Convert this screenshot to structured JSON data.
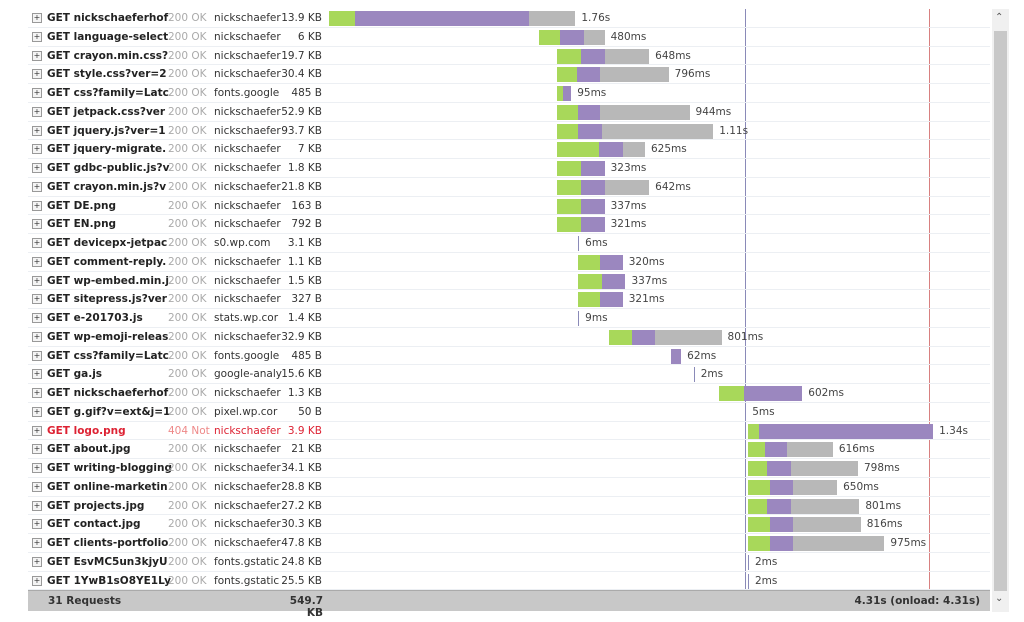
{
  "timeline": {
    "range_s": [
      0,
      4.75
    ],
    "dom_content_loaded_s": 2.99,
    "onload_s": 4.31,
    "colors": {
      "connecting": "#a8d85a",
      "waiting": "#9b87bf",
      "receiving": "#b8b8b8",
      "dom_line": "#8a8ab8",
      "onload_line": "#d88080"
    }
  },
  "requests": [
    {
      "name": "GET nickschaeferhof",
      "status": "200 OK",
      "domain": "nickschaefer",
      "size": "13.9 KB",
      "time": "1.76s",
      "start": 0,
      "g": 0.19,
      "p": 1.25,
      "r": 0.33
    },
    {
      "name": "GET language-select",
      "status": "200 OK",
      "domain": "nickschaefer",
      "size": "6 KB",
      "time": "480ms",
      "start": 1.51,
      "g": 0.15,
      "p": 0.17,
      "r": 0.15
    },
    {
      "name": "GET crayon.min.css?",
      "status": "200 OK",
      "domain": "nickschaefer",
      "size": "19.7 KB",
      "time": "648ms",
      "start": 1.64,
      "g": 0.17,
      "p": 0.17,
      "r": 0.32
    },
    {
      "name": "GET style.css?ver=2",
      "status": "200 OK",
      "domain": "nickschaefer",
      "size": "30.4 KB",
      "time": "796ms",
      "start": 1.64,
      "g": 0.14,
      "p": 0.17,
      "r": 0.49
    },
    {
      "name": "GET css?family=Latc",
      "status": "200 OK",
      "domain": "fonts.google",
      "size": "485 B",
      "time": "95ms",
      "start": 1.64,
      "g": 0.04,
      "p": 0.06,
      "r": 0
    },
    {
      "name": "GET jetpack.css?ver",
      "status": "200 OK",
      "domain": "nickschaefer",
      "size": "52.9 KB",
      "time": "944ms",
      "start": 1.64,
      "g": 0.15,
      "p": 0.16,
      "r": 0.64
    },
    {
      "name": "GET jquery.js?ver=1",
      "status": "200 OK",
      "domain": "nickschaefer",
      "size": "93.7 KB",
      "time": "1.11s",
      "start": 1.64,
      "g": 0.15,
      "p": 0.17,
      "r": 0.8
    },
    {
      "name": "GET jquery-migrate.",
      "status": "200 OK",
      "domain": "nickschaefer",
      "size": "7 KB",
      "time": "625ms",
      "start": 1.64,
      "g": 0.3,
      "p": 0.17,
      "r": 0.16
    },
    {
      "name": "GET gdbc-public.js?v",
      "status": "200 OK",
      "domain": "nickschaefer",
      "size": "1.8 KB",
      "time": "323ms",
      "start": 1.64,
      "g": 0.17,
      "p": 0.17,
      "r": 0
    },
    {
      "name": "GET crayon.min.js?v",
      "status": "200 OK",
      "domain": "nickschaefer",
      "size": "21.8 KB",
      "time": "642ms",
      "start": 1.64,
      "g": 0.17,
      "p": 0.17,
      "r": 0.32
    },
    {
      "name": "GET DE.png",
      "status": "200 OK",
      "domain": "nickschaefer",
      "size": "163 B",
      "time": "337ms",
      "start": 1.64,
      "g": 0.17,
      "p": 0.17,
      "r": 0
    },
    {
      "name": "GET EN.png",
      "status": "200 OK",
      "domain": "nickschaefer",
      "size": "792 B",
      "time": "321ms",
      "start": 1.64,
      "g": 0.17,
      "p": 0.17,
      "r": 0
    },
    {
      "name": "GET devicepx-jetpac",
      "status": "200 OK",
      "domain": "s0.wp.com",
      "size": "3.1 KB",
      "time": "6ms",
      "start": 1.79,
      "g": 0,
      "p": 0,
      "r": 0
    },
    {
      "name": "GET comment-reply.",
      "status": "200 OK",
      "domain": "nickschaefer",
      "size": "1.1 KB",
      "time": "320ms",
      "start": 1.79,
      "g": 0.16,
      "p": 0.16,
      "r": 0
    },
    {
      "name": "GET wp-embed.min.j",
      "status": "200 OK",
      "domain": "nickschaefer",
      "size": "1.5 KB",
      "time": "337ms",
      "start": 1.79,
      "g": 0.17,
      "p": 0.17,
      "r": 0
    },
    {
      "name": "GET sitepress.js?ver",
      "status": "200 OK",
      "domain": "nickschaefer",
      "size": "327 B",
      "time": "321ms",
      "start": 1.79,
      "g": 0.16,
      "p": 0.16,
      "r": 0
    },
    {
      "name": "GET e-201703.js",
      "status": "200 OK",
      "domain": "stats.wp.cor",
      "size": "1.4 KB",
      "time": "9ms",
      "start": 1.79,
      "g": 0,
      "p": 0,
      "r": 0
    },
    {
      "name": "GET wp-emoji-releas",
      "status": "200 OK",
      "domain": "nickschaefer",
      "size": "32.9 KB",
      "time": "801ms",
      "start": 2.01,
      "g": 0.17,
      "p": 0.16,
      "r": 0.48
    },
    {
      "name": "GET css?family=Latc",
      "status": "200 OK",
      "domain": "fonts.google",
      "size": "485 B",
      "time": "62ms",
      "start": 2.46,
      "g": 0,
      "p": 0.07,
      "r": 0
    },
    {
      "name": "GET ga.js",
      "status": "200 OK",
      "domain": "google-analy",
      "size": "15.6 KB",
      "time": "2ms",
      "start": 2.62,
      "g": 0,
      "p": 0,
      "r": 0
    },
    {
      "name": "GET nickschaeferhof",
      "status": "200 OK",
      "domain": "nickschaefer",
      "size": "1.3 KB",
      "time": "602ms",
      "start": 2.8,
      "g": 0.18,
      "p": 0.42,
      "r": 0
    },
    {
      "name": "GET g.gif?v=ext&j=1",
      "status": "200 OK",
      "domain": "pixel.wp.cor",
      "size": "50 B",
      "time": "5ms",
      "start": 2.99,
      "g": 0,
      "p": 0,
      "r": 0
    },
    {
      "name": "GET logo.png",
      "status": "404 Not",
      "domain": "nickschaefer",
      "size": "3.9 KB",
      "time": "1.34s",
      "start": 3.01,
      "g": 0.08,
      "p": 1.25,
      "r": 0,
      "error": true
    },
    {
      "name": "GET about.jpg",
      "status": "200 OK",
      "domain": "nickschaefer",
      "size": "21 KB",
      "time": "616ms",
      "start": 3.01,
      "g": 0.12,
      "p": 0.16,
      "r": 0.33
    },
    {
      "name": "GET writing-blogging",
      "status": "200 OK",
      "domain": "nickschaefer",
      "size": "34.1 KB",
      "time": "798ms",
      "start": 3.01,
      "g": 0.14,
      "p": 0.17,
      "r": 0.48
    },
    {
      "name": "GET online-marketin",
      "status": "200 OK",
      "domain": "nickschaefer",
      "size": "28.8 KB",
      "time": "650ms",
      "start": 3.01,
      "g": 0.16,
      "p": 0.16,
      "r": 0.32
    },
    {
      "name": "GET projects.jpg",
      "status": "200 OK",
      "domain": "nickschaefer",
      "size": "27.2 KB",
      "time": "801ms",
      "start": 3.01,
      "g": 0.14,
      "p": 0.17,
      "r": 0.49
    },
    {
      "name": "GET contact.jpg",
      "status": "200 OK",
      "domain": "nickschaefer",
      "size": "30.3 KB",
      "time": "816ms",
      "start": 3.01,
      "g": 0.16,
      "p": 0.16,
      "r": 0.49
    },
    {
      "name": "GET clients-portfolio",
      "status": "200 OK",
      "domain": "nickschaefer",
      "size": "47.8 KB",
      "time": "975ms",
      "start": 3.01,
      "g": 0.16,
      "p": 0.16,
      "r": 0.66
    },
    {
      "name": "GET EsvMC5un3kjyU",
      "status": "200 OK",
      "domain": "fonts.gstatic",
      "size": "24.8 KB",
      "time": "2ms",
      "start": 3.01,
      "g": 0,
      "p": 0,
      "r": 0
    },
    {
      "name": "GET 1YwB1sO8YE1Ly",
      "status": "200 OK",
      "domain": "fonts.gstatic",
      "size": "25.5 KB",
      "time": "2ms",
      "start": 3.01,
      "g": 0,
      "p": 0,
      "r": 0
    }
  ],
  "summary": {
    "requests": "31 Requests",
    "size": "549.7 KB",
    "time": "4.31s (onload: 4.31s)"
  },
  "icons": {
    "expand": "plus-box-icon",
    "scroll_up": "chevron-up-icon",
    "scroll_down": "chevron-down-icon"
  },
  "glyphs": {
    "expand": "+",
    "up": "⌃",
    "down": "⌄"
  }
}
